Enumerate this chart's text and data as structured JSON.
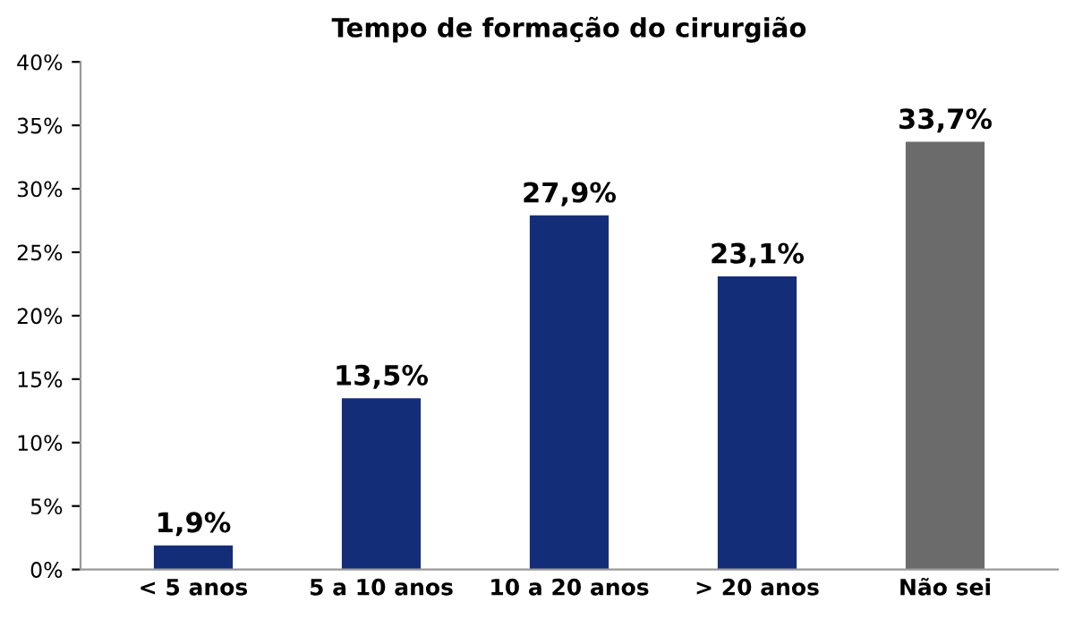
{
  "chart_data": {
    "type": "bar",
    "title": "Tempo de formação do cirurgião",
    "categories": [
      "< 5 anos",
      "5 a 10 anos",
      "10 a 20 anos",
      "> 20 anos",
      "Não sei"
    ],
    "values": [
      1.9,
      13.5,
      27.9,
      23.1,
      33.7
    ],
    "value_labels": [
      "1,9%",
      "13,5%",
      "27,9%",
      "23,1%",
      "33,7%"
    ],
    "colors": [
      "#132d78",
      "#132d78",
      "#132d78",
      "#132d78",
      "#6b6b6b"
    ],
    "ylim": [
      0,
      40
    ],
    "yticks": [
      {
        "value": 0,
        "label": "0%"
      },
      {
        "value": 5,
        "label": "5%"
      },
      {
        "value": 10,
        "label": "10%"
      },
      {
        "value": 15,
        "label": "15%"
      },
      {
        "value": 20,
        "label": "20%"
      },
      {
        "value": 25,
        "label": "25%"
      },
      {
        "value": 30,
        "label": "30%"
      },
      {
        "value": 35,
        "label": "35%"
      },
      {
        "value": 40,
        "label": "40%"
      }
    ],
    "grid": false,
    "legend": false
  }
}
